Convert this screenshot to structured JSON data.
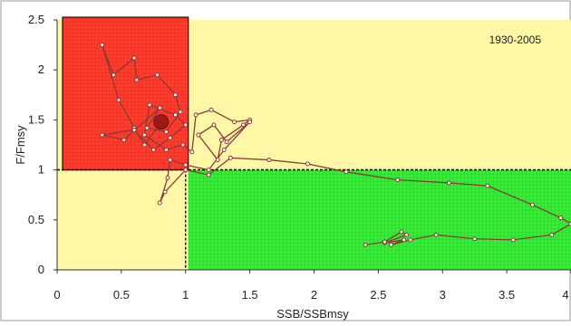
{
  "chart_data": {
    "type": "line",
    "annotation": "1930-2005",
    "xlabel": "SSB/SSBmsy",
    "ylabel": "F/Fmsy",
    "xlim": [
      0,
      4
    ],
    "ylim": [
      0,
      2.5
    ],
    "x_ticks": [
      "0",
      "0.5",
      "1",
      "1.5",
      "2",
      "2.5",
      "3",
      "3.5",
      "4"
    ],
    "y_ticks": [
      "0",
      "0.5",
      "1",
      "1.5",
      "2",
      "2.5"
    ],
    "reference_lines": {
      "x": 1,
      "y": 1
    },
    "quadrant_colors": {
      "overfished_overfishing": "#ff3b2b",
      "healthy": "#33ee33",
      "caution": "#fdf7a6",
      "grid_red": "#d8281c",
      "grid_green": "#2bc02b"
    },
    "marker_color": "#8b3a3a",
    "highlight_point": {
      "x": 0.81,
      "y": 1.48
    },
    "series": [
      {
        "x": [
          0.81,
          0.68,
          0.6,
          0.48,
          0.35,
          0.44,
          0.6,
          0.62,
          0.78,
          0.92,
          0.96,
          0.85,
          0.7,
          0.8,
          0.52,
          0.35,
          0.6,
          0.75,
          0.88,
          1.0,
          0.92,
          0.72,
          0.68,
          0.85,
          0.98,
          1.05,
          1.08,
          1.2,
          1.38,
          1.5,
          1.45,
          1.28,
          1.25,
          1.1,
          1.22,
          1.32,
          1.5,
          1.3,
          1.18,
          1.0,
          0.88,
          0.86,
          0.8,
          0.84,
          1.0,
          1.18,
          1.35,
          1.65,
          1.95,
          2.25,
          2.65,
          3.05,
          3.35,
          3.7,
          3.92,
          4.0,
          3.85,
          3.55,
          3.25,
          2.95,
          2.75,
          2.6,
          2.7,
          2.55,
          2.72,
          2.68,
          2.55,
          2.4
        ],
        "y": [
          1.48,
          1.25,
          1.42,
          1.7,
          2.25,
          1.95,
          2.12,
          1.9,
          1.95,
          1.75,
          1.58,
          1.38,
          1.42,
          1.62,
          1.3,
          1.35,
          1.4,
          1.2,
          1.32,
          1.45,
          1.55,
          1.65,
          1.35,
          1.2,
          1.25,
          1.18,
          1.55,
          1.6,
          1.48,
          1.5,
          1.45,
          1.3,
          1.1,
          1.35,
          1.45,
          1.28,
          1.48,
          1.2,
          1.0,
          1.05,
          1.1,
          0.92,
          0.67,
          0.78,
          1.0,
          0.95,
          1.12,
          1.1,
          1.06,
          0.98,
          0.9,
          0.87,
          0.84,
          0.65,
          0.52,
          0.46,
          0.35,
          0.3,
          0.31,
          0.35,
          0.3,
          0.25,
          0.3,
          0.27,
          0.35,
          0.38,
          0.28,
          0.25
        ]
      }
    ]
  }
}
